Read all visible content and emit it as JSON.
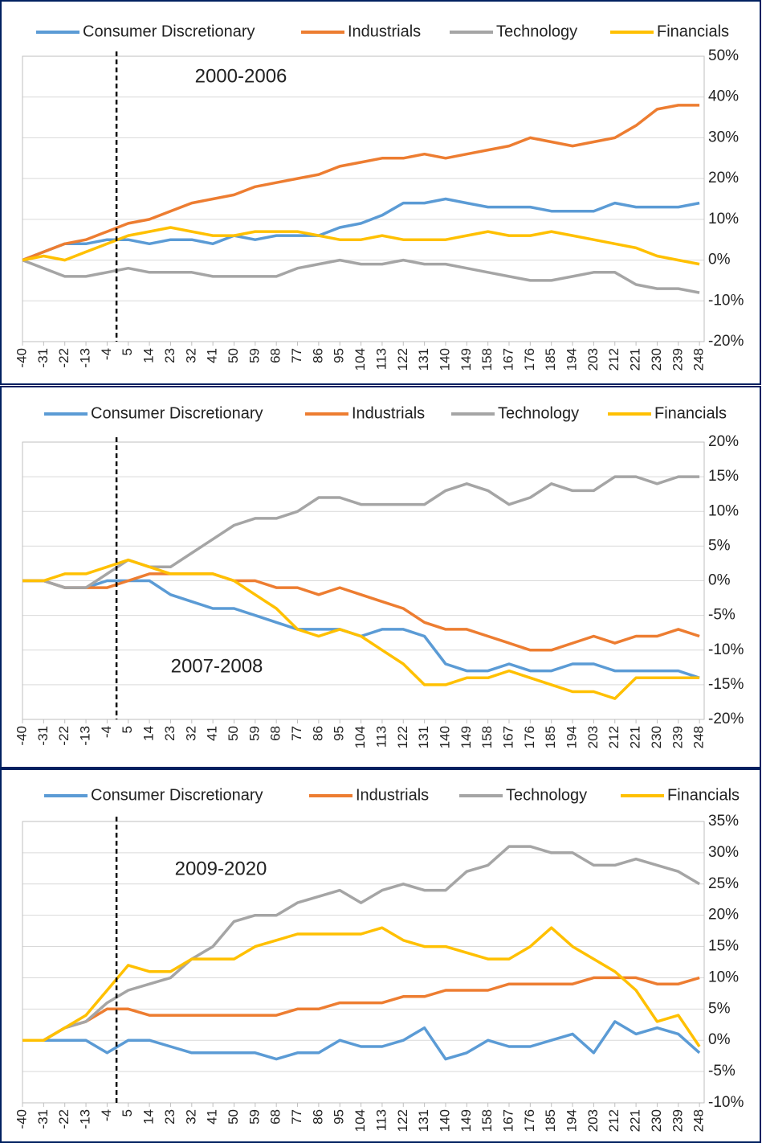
{
  "chart_data": [
    {
      "type": "line",
      "annotation": "2000-2006",
      "x": [
        -40,
        -31,
        -22,
        -13,
        -4,
        5,
        14,
        23,
        32,
        41,
        50,
        59,
        68,
        77,
        86,
        95,
        104,
        113,
        122,
        131,
        140,
        149,
        158,
        167,
        176,
        185,
        194,
        203,
        212,
        221,
        230,
        239,
        248
      ],
      "xlim": [
        -40,
        250
      ],
      "xticks": [
        -40,
        -31,
        -22,
        -13,
        -4,
        5,
        14,
        23,
        32,
        41,
        50,
        59,
        68,
        77,
        86,
        95,
        104,
        113,
        122,
        131,
        140,
        149,
        158,
        167,
        176,
        185,
        194,
        203,
        212,
        221,
        230,
        239,
        248
      ],
      "vline": 0,
      "ylim": [
        -20,
        50
      ],
      "yticks": [
        {
          "value": -20,
          "label": "-20%"
        },
        {
          "value": -10,
          "label": "-10%"
        },
        {
          "value": 0,
          "label": "0%"
        },
        {
          "value": 10,
          "label": "10%"
        },
        {
          "value": 20,
          "label": "20%"
        },
        {
          "value": 30,
          "label": "30%"
        },
        {
          "value": 40,
          "label": "40%"
        },
        {
          "value": 50,
          "label": "50%"
        }
      ],
      "grid": true,
      "series": [
        {
          "name": "Consumer Discretionary",
          "color": "#5b9bd5",
          "values": [
            0,
            2,
            4,
            4,
            5,
            5,
            4,
            5,
            5,
            4,
            6,
            5,
            6,
            6,
            6,
            8,
            9,
            11,
            14,
            14,
            15,
            14,
            13,
            13,
            13,
            12,
            12,
            12,
            14,
            13,
            13,
            13,
            14
          ]
        },
        {
          "name": "Industrials",
          "color": "#ed7d31",
          "values": [
            0,
            2,
            4,
            5,
            7,
            9,
            10,
            12,
            14,
            15,
            16,
            18,
            19,
            20,
            21,
            23,
            24,
            25,
            25,
            26,
            25,
            26,
            27,
            28,
            30,
            29,
            28,
            29,
            30,
            33,
            37,
            38,
            38
          ]
        },
        {
          "name": "Technology",
          "color": "#a5a5a5",
          "values": [
            0,
            -2,
            -4,
            -4,
            -3,
            -2,
            -3,
            -3,
            -3,
            -4,
            -4,
            -4,
            -4,
            -2,
            -1,
            0,
            -1,
            -1,
            0,
            -1,
            -1,
            -2,
            -3,
            -4,
            -5,
            -5,
            -4,
            -3,
            -3,
            -6,
            -7,
            -7,
            -8
          ]
        },
        {
          "name": "Financials",
          "color": "#ffc000",
          "values": [
            0,
            1,
            0,
            2,
            4,
            6,
            7,
            8,
            7,
            6,
            6,
            7,
            7,
            7,
            6,
            5,
            5,
            6,
            5,
            5,
            5,
            6,
            7,
            6,
            6,
            7,
            6,
            5,
            4,
            3,
            1,
            0,
            -1
          ]
        }
      ]
    },
    {
      "type": "line",
      "annotation": "2007-2008",
      "x": [
        -40,
        -31,
        -22,
        -13,
        -4,
        5,
        14,
        23,
        32,
        41,
        50,
        59,
        68,
        77,
        86,
        95,
        104,
        113,
        122,
        131,
        140,
        149,
        158,
        167,
        176,
        185,
        194,
        203,
        212,
        221,
        230,
        239,
        248
      ],
      "xlim": [
        -40,
        250
      ],
      "xticks": [
        -40,
        -31,
        -22,
        -13,
        -4,
        5,
        14,
        23,
        32,
        41,
        50,
        59,
        68,
        77,
        86,
        95,
        104,
        113,
        122,
        131,
        140,
        149,
        158,
        167,
        176,
        185,
        194,
        203,
        212,
        221,
        230,
        239,
        248
      ],
      "vline": 0,
      "ylim": [
        -20,
        20
      ],
      "yticks": [
        {
          "value": -20,
          "label": "-20%"
        },
        {
          "value": -15,
          "label": "-15%"
        },
        {
          "value": -10,
          "label": "-10%"
        },
        {
          "value": -5,
          "label": "-5%"
        },
        {
          "value": 0,
          "label": "0%"
        },
        {
          "value": 5,
          "label": "5%"
        },
        {
          "value": 10,
          "label": "10%"
        },
        {
          "value": 15,
          "label": "15%"
        },
        {
          "value": 20,
          "label": "20%"
        }
      ],
      "grid": true,
      "series": [
        {
          "name": "Consumer Discretionary",
          "color": "#5b9bd5",
          "values": [
            0,
            0,
            -1,
            -1,
            0,
            0,
            0,
            -2,
            -3,
            -4,
            -4,
            -5,
            -6,
            -7,
            -7,
            -7,
            -8,
            -7,
            -7,
            -8,
            -12,
            -13,
            -13,
            -12,
            -13,
            -13,
            -12,
            -12,
            -13,
            -13,
            -13,
            -13,
            -14
          ]
        },
        {
          "name": "Industrials",
          "color": "#ed7d31",
          "values": [
            0,
            0,
            -1,
            -1,
            -1,
            0,
            1,
            1,
            1,
            1,
            0,
            0,
            -1,
            -1,
            -2,
            -1,
            -2,
            -3,
            -4,
            -6,
            -7,
            -7,
            -8,
            -9,
            -10,
            -10,
            -9,
            -8,
            -9,
            -8,
            -8,
            -7,
            -8
          ]
        },
        {
          "name": "Technology",
          "color": "#a5a5a5",
          "values": [
            0,
            0,
            -1,
            -1,
            1,
            3,
            2,
            2,
            4,
            6,
            8,
            9,
            9,
            10,
            12,
            12,
            11,
            11,
            11,
            11,
            13,
            14,
            13,
            11,
            12,
            14,
            13,
            13,
            15,
            15,
            14,
            15,
            15
          ]
        },
        {
          "name": "Financials",
          "color": "#ffc000",
          "values": [
            0,
            0,
            1,
            1,
            2,
            3,
            2,
            1,
            1,
            1,
            0,
            -2,
            -4,
            -7,
            -8,
            -7,
            -8,
            -10,
            -12,
            -15,
            -15,
            -14,
            -14,
            -13,
            -14,
            -15,
            -16,
            -16,
            -17,
            -14,
            -14,
            -14,
            -14
          ]
        }
      ]
    },
    {
      "type": "line",
      "annotation": "2009-2020",
      "x": [
        -40,
        -31,
        -22,
        -13,
        -4,
        5,
        14,
        23,
        32,
        41,
        50,
        59,
        68,
        77,
        86,
        95,
        104,
        113,
        122,
        131,
        140,
        149,
        158,
        167,
        176,
        185,
        194,
        203,
        212,
        221,
        230,
        239,
        248
      ],
      "xlim": [
        -40,
        250
      ],
      "xticks": [
        -40,
        -31,
        -22,
        -13,
        -4,
        5,
        14,
        23,
        32,
        41,
        50,
        59,
        68,
        77,
        86,
        95,
        104,
        113,
        122,
        131,
        140,
        149,
        158,
        167,
        176,
        185,
        194,
        203,
        212,
        221,
        230,
        239,
        248
      ],
      "vline": 0,
      "ylim": [
        -10,
        35
      ],
      "yticks": [
        {
          "value": -10,
          "label": "-10%"
        },
        {
          "value": -5,
          "label": "-5%"
        },
        {
          "value": 0,
          "label": "0%"
        },
        {
          "value": 5,
          "label": "5%"
        },
        {
          "value": 10,
          "label": "10%"
        },
        {
          "value": 15,
          "label": "15%"
        },
        {
          "value": 20,
          "label": "20%"
        },
        {
          "value": 25,
          "label": "25%"
        },
        {
          "value": 30,
          "label": "30%"
        },
        {
          "value": 35,
          "label": "35%"
        }
      ],
      "grid": true,
      "series": [
        {
          "name": "Consumer Discretionary",
          "color": "#5b9bd5",
          "values": [
            0,
            0,
            0,
            0,
            -2,
            0,
            0,
            -1,
            -2,
            -2,
            -2,
            -2,
            -3,
            -2,
            -2,
            0,
            -1,
            -1,
            0,
            2,
            -3,
            -2,
            0,
            -1,
            -1,
            0,
            1,
            -2,
            3,
            1,
            2,
            1,
            -2
          ]
        },
        {
          "name": "Industrials",
          "color": "#ed7d31",
          "values": [
            0,
            0,
            2,
            3,
            5,
            5,
            4,
            4,
            4,
            4,
            4,
            4,
            4,
            5,
            5,
            6,
            6,
            6,
            7,
            7,
            8,
            8,
            8,
            9,
            9,
            9,
            9,
            10,
            10,
            10,
            9,
            9,
            10
          ]
        },
        {
          "name": "Technology",
          "color": "#a5a5a5",
          "values": [
            0,
            0,
            2,
            3,
            6,
            8,
            9,
            10,
            13,
            15,
            19,
            20,
            20,
            22,
            23,
            24,
            22,
            24,
            25,
            24,
            24,
            27,
            28,
            31,
            31,
            30,
            30,
            28,
            28,
            29,
            28,
            27,
            25
          ]
        },
        {
          "name": "Financials",
          "color": "#ffc000",
          "values": [
            0,
            0,
            2,
            4,
            8,
            12,
            11,
            11,
            13,
            13,
            13,
            15,
            16,
            17,
            17,
            17,
            17,
            18,
            16,
            15,
            15,
            14,
            13,
            13,
            15,
            18,
            15,
            13,
            11,
            8,
            3,
            4,
            -1
          ]
        }
      ]
    }
  ]
}
